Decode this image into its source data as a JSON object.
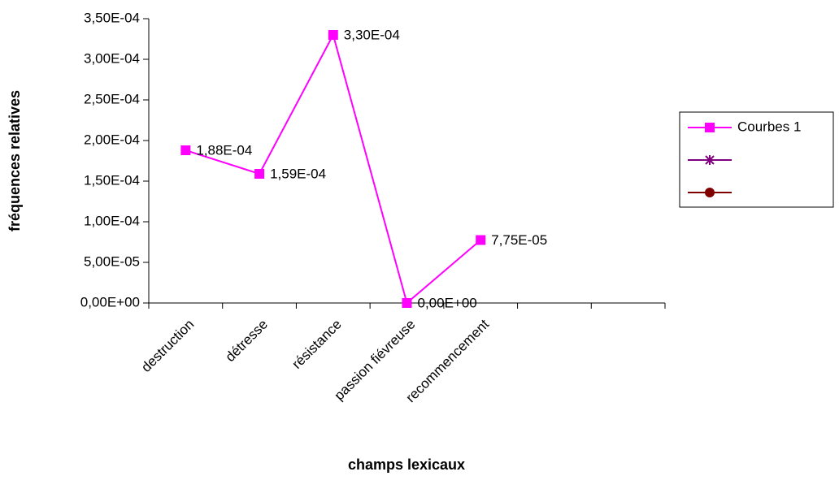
{
  "chart_data": {
    "type": "line",
    "x_label": "champs lexicaux",
    "y_label": "fréquences relatives",
    "categories": [
      "destruction",
      "détresse",
      "résistance",
      "passion fiévreuse",
      "recommencement",
      null,
      null
    ],
    "series": [
      {
        "name": "Courbes 1",
        "color": "#ff00ff",
        "marker": "square",
        "values": [
          0.000188,
          0.000159,
          0.00033,
          0,
          7.75e-05,
          null,
          null
        ],
        "value_labels": [
          "1,88E-04",
          "1,59E-04",
          "3,30E-04",
          "0,00E+00",
          "7,75E-05",
          null,
          null
        ]
      },
      {
        "color": "#800080",
        "marker": "star",
        "values": [
          null,
          null,
          null,
          null,
          null,
          null,
          null
        ]
      },
      {
        "color": "#800000",
        "marker": "circle",
        "values": [
          null,
          null,
          null,
          null,
          null,
          null,
          null
        ]
      }
    ],
    "ylim": [
      0,
      0.00035
    ],
    "yticks": [
      {
        "value": 0,
        "label": "0,00E+00"
      },
      {
        "value": 5e-05,
        "label": "5,00E-05"
      },
      {
        "value": 0.0001,
        "label": "1,00E-04"
      },
      {
        "value": 0.00015,
        "label": "1,50E-04"
      },
      {
        "value": 0.0002,
        "label": "2,00E-04"
      },
      {
        "value": 0.00025,
        "label": "2,50E-04"
      },
      {
        "value": 0.0003,
        "label": "3,00E-04"
      },
      {
        "value": 0.00035,
        "label": "3,50E-04"
      }
    ],
    "grid": false,
    "legend": "right"
  }
}
